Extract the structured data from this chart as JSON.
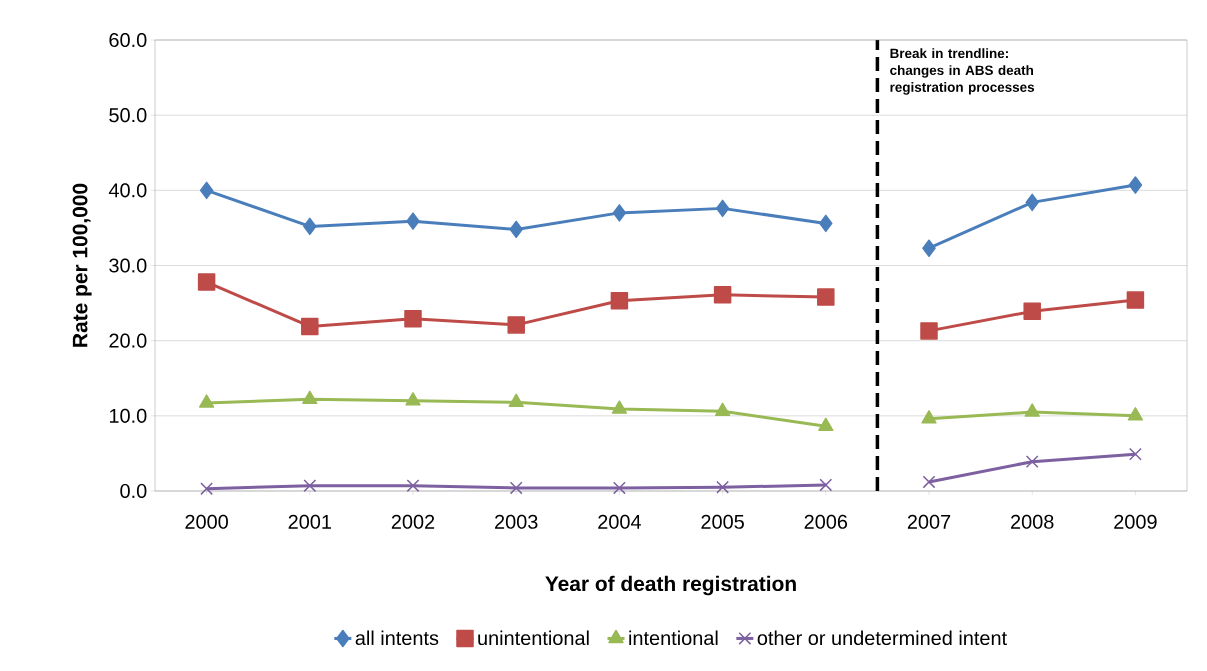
{
  "chart_data": {
    "type": "line",
    "xlabel": "Year of death registration",
    "ylabel": "Rate per 100,000",
    "x": [
      2000,
      2001,
      2002,
      2003,
      2004,
      2005,
      2006,
      2007,
      2008,
      2009
    ],
    "xlim": [
      1999.5,
      2009.5
    ],
    "xticks": [
      2000,
      2001,
      2002,
      2003,
      2004,
      2005,
      2006,
      2007,
      2008,
      2009
    ],
    "ylim": [
      0,
      60
    ],
    "yticks": [
      {
        "value": 0,
        "label": "0.0"
      },
      {
        "value": 10,
        "label": "10.0"
      },
      {
        "value": 20,
        "label": "20.0"
      },
      {
        "value": 30,
        "label": "30.0"
      },
      {
        "value": 40,
        "label": "40.0"
      },
      {
        "value": 50,
        "label": "50.0"
      },
      {
        "value": 60,
        "label": "60.0"
      }
    ],
    "grid": "y",
    "legend": "bottom",
    "series": [
      {
        "name": "all intents",
        "color": "#4a7ebb",
        "marker": "diamond",
        "values": [
          40.0,
          35.2,
          35.9,
          34.8,
          37.0,
          37.6,
          35.6,
          32.3,
          38.4,
          40.7
        ]
      },
      {
        "name": "unintentional",
        "color": "#be4b48",
        "marker": "square",
        "values": [
          27.8,
          21.9,
          22.9,
          22.1,
          25.3,
          26.1,
          25.8,
          21.3,
          23.9,
          25.4
        ]
      },
      {
        "name": "intentional",
        "color": "#98b954",
        "marker": "triangle",
        "values": [
          11.7,
          12.2,
          12.0,
          11.8,
          10.9,
          10.6,
          8.6,
          9.6,
          10.5,
          10.0
        ]
      },
      {
        "name": "other or undetermined intent",
        "color": "#7d60a0",
        "marker": "cross",
        "values": [
          0.3,
          0.7,
          0.7,
          0.4,
          0.4,
          0.5,
          0.8,
          1.2,
          3.9,
          4.9
        ]
      }
    ],
    "ref_lines": [
      {
        "axis": "x",
        "value": 2006.5,
        "label": "Break in trendline: changes in ABS death registration processes",
        "color": "#000000",
        "line_style": "dashed"
      }
    ]
  }
}
